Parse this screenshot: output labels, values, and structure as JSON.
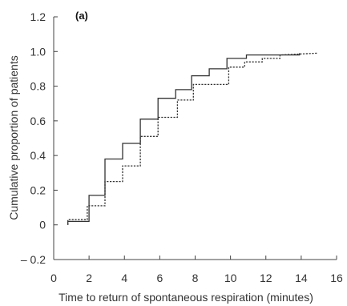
{
  "chart_data": {
    "type": "line",
    "step": true,
    "panel_label": "(a)",
    "title": "",
    "xlabel": "Time to return of spontaneous respiration (minutes)",
    "ylabel": "Cumulative proportion of patients",
    "xlim": [
      0,
      16
    ],
    "ylim": [
      -0.2,
      1.2
    ],
    "xticks": [
      0,
      2,
      4,
      6,
      8,
      10,
      12,
      14,
      16
    ],
    "yticks": [
      -0.2,
      0,
      0.2,
      0.4,
      0.6,
      0.8,
      1.0,
      1.2
    ],
    "xtick_labels": [
      "0",
      "2",
      "4",
      "6",
      "8",
      "10",
      "12",
      "14",
      "16"
    ],
    "ytick_labels": [
      "– 0.2",
      "0",
      "0.2",
      "0.4",
      "0.6",
      "0.8",
      "1.0",
      "1.2"
    ],
    "grid": false,
    "legend": "none",
    "series": [
      {
        "style": "solid",
        "color": "#333333",
        "x": [
          0.8,
          0.8,
          2.0,
          2.0,
          2.9,
          2.9,
          3.9,
          3.9,
          4.9,
          4.9,
          5.9,
          5.9,
          6.9,
          6.9,
          7.8,
          7.8,
          8.8,
          8.8,
          9.8,
          9.8,
          10.9,
          10.9,
          13.9,
          13.9
        ],
        "y": [
          0.0,
          0.02,
          0.02,
          0.17,
          0.17,
          0.38,
          0.38,
          0.47,
          0.47,
          0.61,
          0.61,
          0.73,
          0.73,
          0.78,
          0.78,
          0.86,
          0.86,
          0.9,
          0.9,
          0.96,
          0.96,
          0.98,
          0.98,
          0.99
        ]
      },
      {
        "style": "dotted",
        "color": "#333333",
        "x": [
          0.8,
          0.8,
          1.9,
          1.9,
          2.9,
          2.9,
          3.9,
          3.9,
          4.9,
          4.9,
          5.9,
          5.9,
          7.0,
          7.0,
          7.9,
          7.9,
          9.9,
          9.9,
          10.8,
          10.8,
          11.8,
          11.8,
          12.8,
          12.8,
          14.9
        ],
        "y": [
          0.0,
          0.03,
          0.03,
          0.11,
          0.11,
          0.25,
          0.25,
          0.34,
          0.34,
          0.51,
          0.51,
          0.62,
          0.62,
          0.72,
          0.72,
          0.81,
          0.81,
          0.91,
          0.91,
          0.94,
          0.94,
          0.96,
          0.96,
          0.98,
          0.99
        ]
      }
    ]
  }
}
